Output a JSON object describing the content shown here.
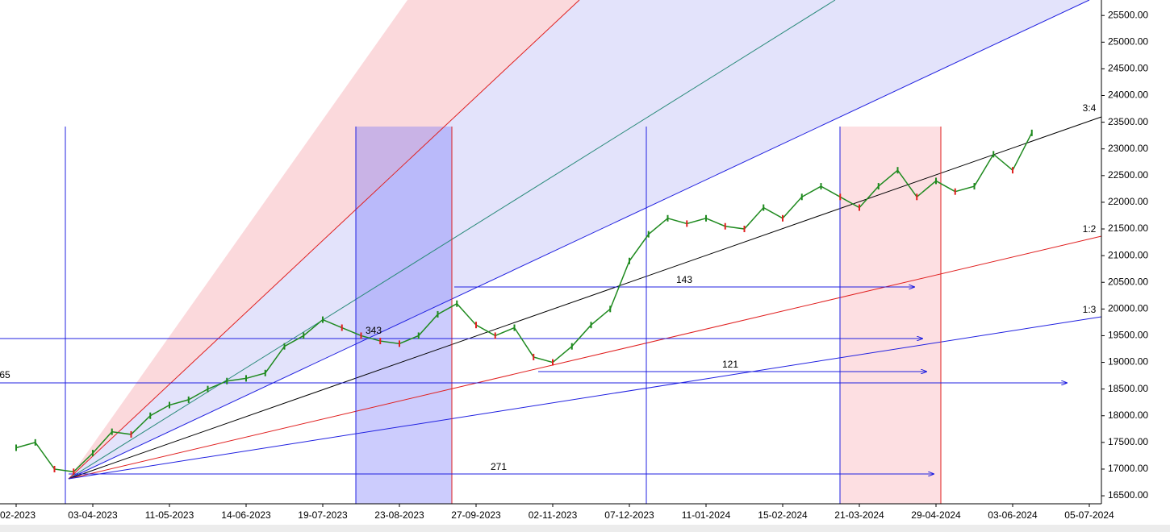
{
  "chart_data": {
    "type": "line",
    "categories": [
      "-02-2023",
      null,
      null,
      null,
      "03-04-2023",
      null,
      null,
      null,
      "11-05-2023",
      null,
      null,
      null,
      "14-06-2023",
      null,
      null,
      null,
      "19-07-2023",
      null,
      null,
      null,
      "23-08-2023",
      null,
      null,
      null,
      "27-09-2023",
      null,
      null,
      null,
      "02-11-2023",
      null,
      null,
      null,
      "07-12-2023",
      null,
      null,
      null,
      "11-01-2024",
      null,
      null,
      null,
      "15-02-2024",
      null,
      null,
      null,
      "21-03-2024",
      null,
      null,
      null,
      "29-04-2024",
      null,
      null,
      null,
      "03-06-2024",
      null,
      null,
      null,
      "05-07-2024"
    ],
    "values": [
      17400,
      17500,
      17000,
      16950,
      17300,
      17700,
      17650,
      18000,
      18200,
      18300,
      18500,
      18650,
      18700,
      18800,
      19300,
      19500,
      19800,
      19650,
      19500,
      19400,
      19350,
      19500,
      19900,
      20100,
      19700,
      19500,
      19650,
      19100,
      19000,
      19300,
      19700,
      20000,
      20900,
      21400,
      21700,
      21600,
      21700,
      21550,
      21500,
      21900,
      21700,
      22100,
      22300,
      22100,
      21900,
      22300,
      22600,
      22100,
      22400,
      22200,
      22300,
      22900,
      22600,
      23300,
      null,
      null,
      null
    ],
    "color": "#1f8a1f",
    "ylim": [
      16350,
      25790
    ],
    "yticks": [
      {
        "value": 16500,
        "label": "16500.00"
      },
      {
        "value": 17000,
        "label": "17000.00"
      },
      {
        "value": 17500,
        "label": "17500.00"
      },
      {
        "value": 18000,
        "label": "18000.00"
      },
      {
        "value": 18500,
        "label": "18500.00"
      },
      {
        "value": 19000,
        "label": "19000.00"
      },
      {
        "value": 19500,
        "label": "19500.00"
      },
      {
        "value": 20000,
        "label": "20000.00"
      },
      {
        "value": 20500,
        "label": "20500.00"
      },
      {
        "value": 21000,
        "label": "21000.00"
      },
      {
        "value": 21500,
        "label": "21500.00"
      },
      {
        "value": 22000,
        "label": "22000.00"
      },
      {
        "value": 22500,
        "label": "22500.00"
      },
      {
        "value": 23000,
        "label": "23000.00"
      },
      {
        "value": 23500,
        "label": "23500.00"
      },
      {
        "value": 24000,
        "label": "24000.00"
      },
      {
        "value": 24500,
        "label": "24500.00"
      },
      {
        "value": 25000,
        "label": "25000.00"
      },
      {
        "value": 25500,
        "label": "25500.00"
      }
    ],
    "annotations": [
      "3:4",
      "1:2",
      "1:3",
      "143",
      "121",
      "271",
      "343",
      "65"
    ]
  }
}
